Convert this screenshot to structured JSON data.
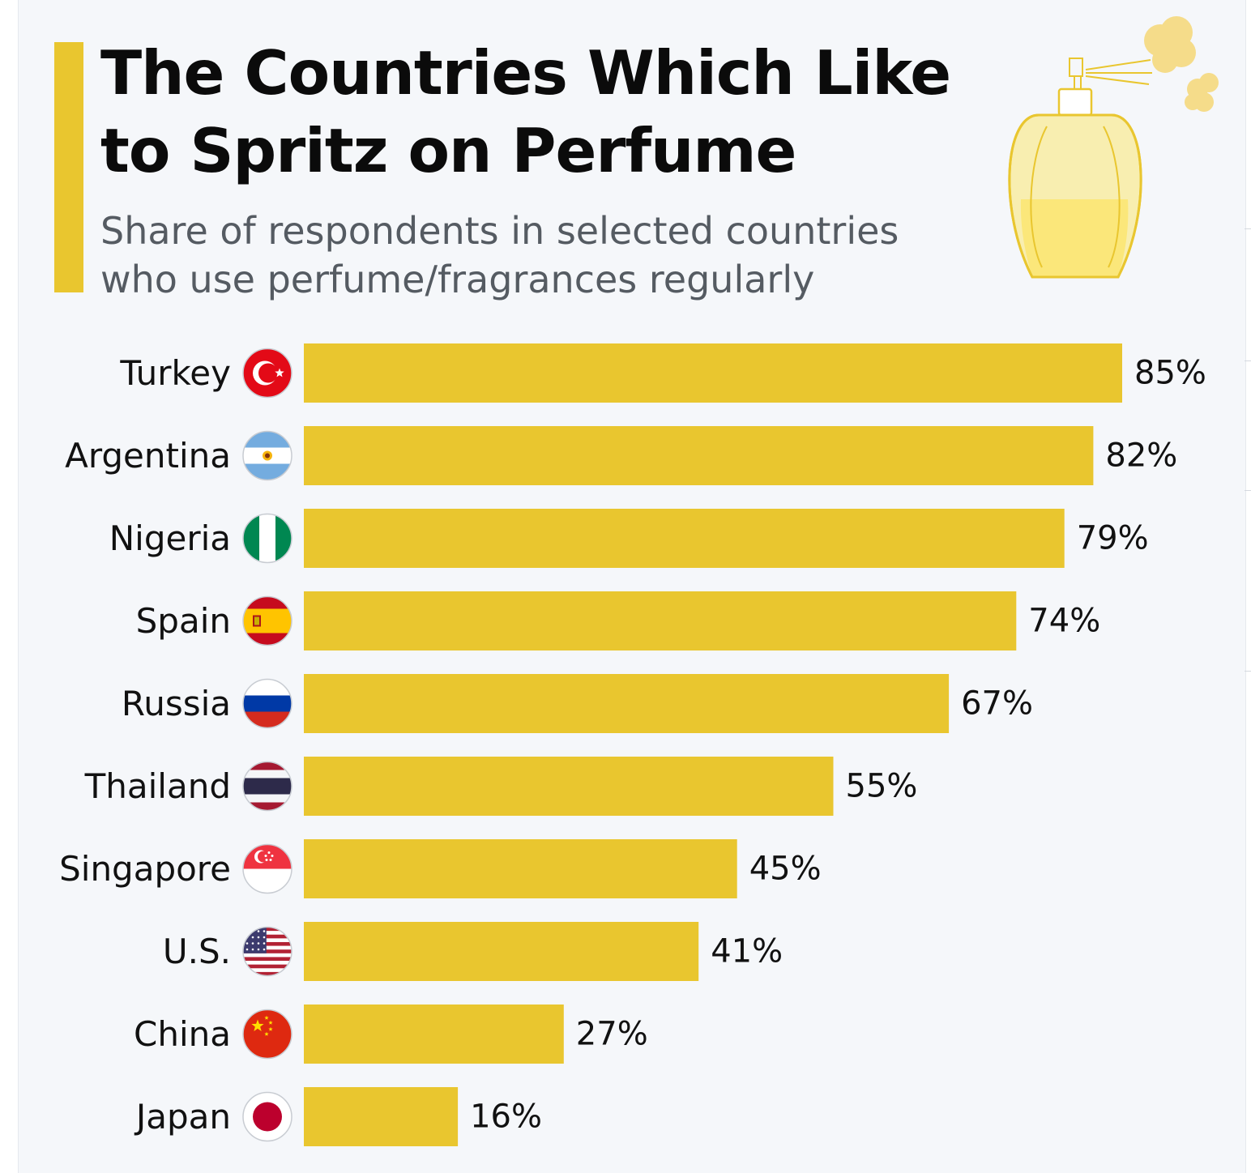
{
  "title_lines": [
    "The Countries Which Like",
    "to Spritz on Perfume"
  ],
  "subtitle_lines": [
    "Share of respondents in selected countries",
    "who use perfume/fragrances regularly"
  ],
  "colors": {
    "bar": "#e9c62f",
    "accent": "#e9c62f",
    "background": "#f5f7fa",
    "text": "#111111",
    "subtitle": "#555b62"
  },
  "illustration": "perfume-bottle-icon",
  "chart_data": {
    "type": "bar",
    "orientation": "horizontal",
    "categories": [
      "Turkey",
      "Argentina",
      "Nigeria",
      "Spain",
      "Russia",
      "Thailand",
      "Singapore",
      "U.S.",
      "China",
      "Japan"
    ],
    "values": [
      85,
      82,
      79,
      74,
      67,
      55,
      45,
      41,
      27,
      16
    ],
    "value_labels": [
      "85%",
      "82%",
      "79%",
      "74%",
      "67%",
      "55%",
      "45%",
      "41%",
      "27%",
      "16%"
    ],
    "flags": [
      "turkey-flag-icon",
      "argentina-flag-icon",
      "nigeria-flag-icon",
      "spain-flag-icon",
      "russia-flag-icon",
      "thailand-flag-icon",
      "singapore-flag-icon",
      "us-flag-icon",
      "china-flag-icon",
      "japan-flag-icon"
    ],
    "unit": "%",
    "xlim": [
      0,
      85
    ],
    "grid": false,
    "legend": "none"
  }
}
